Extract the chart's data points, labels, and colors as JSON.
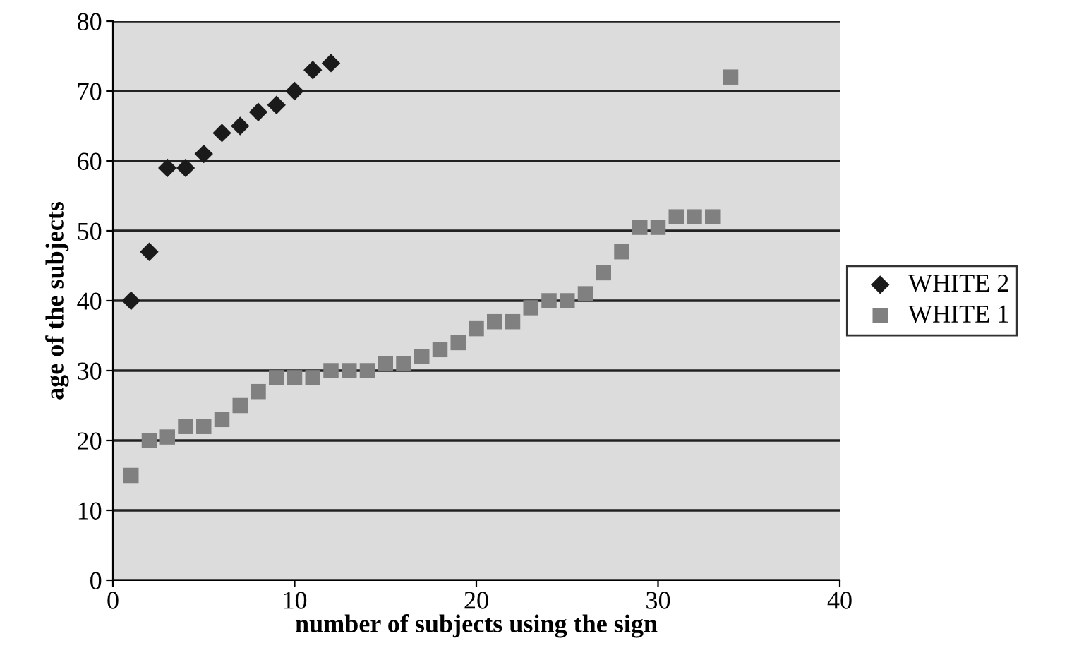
{
  "chart_data": {
    "type": "scatter",
    "xlabel": "number of subjects using the sign",
    "ylabel": "age of the subjects",
    "xlim": [
      0,
      40
    ],
    "xticks": [
      0,
      10,
      20,
      30,
      40
    ],
    "ylim": [
      0,
      80
    ],
    "yticks": [
      0,
      10,
      20,
      30,
      40,
      50,
      60,
      70,
      80
    ],
    "grid": "y",
    "legend": "right",
    "series": [
      {
        "name": "WHITE 2",
        "color": "#1a1a1a",
        "marker": "diamond",
        "x": [
          1,
          2,
          3,
          4,
          5,
          6,
          7,
          8,
          9,
          10,
          11,
          12
        ],
        "values": [
          40,
          47,
          59,
          59,
          61,
          64,
          65,
          67,
          68,
          70,
          73,
          74
        ]
      },
      {
        "name": "WHITE 1",
        "color": "#808080",
        "marker": "square",
        "x": [
          1,
          2,
          3,
          4,
          5,
          6,
          7,
          8,
          9,
          10,
          11,
          12,
          13,
          14,
          15,
          16,
          17,
          18,
          19,
          20,
          21,
          22,
          23,
          24,
          25,
          26,
          27,
          28,
          29,
          30,
          31,
          32,
          33,
          34
        ],
        "values": [
          15,
          20,
          20.5,
          22,
          22,
          23,
          25,
          27,
          29,
          29,
          29,
          30,
          30,
          30,
          31,
          31,
          32,
          33,
          34,
          36,
          37,
          37,
          39,
          40,
          40,
          41,
          44,
          47,
          50.5,
          50.5,
          52,
          52,
          52,
          72
        ]
      }
    ]
  }
}
